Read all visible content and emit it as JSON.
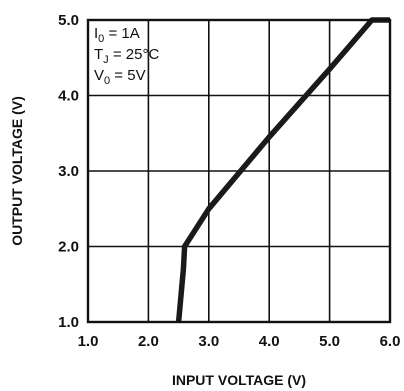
{
  "chart_data": {
    "type": "line",
    "title": "",
    "xlabel": "INPUT VOLTAGE (V)",
    "ylabel": "OUTPUT VOLTAGE (V)",
    "xlim": [
      1.0,
      6.0
    ],
    "ylim": [
      1.0,
      5.0
    ],
    "x_ticks": [
      1.0,
      2.0,
      3.0,
      4.0,
      5.0,
      6.0
    ],
    "y_ticks": [
      1.0,
      2.0,
      3.0,
      4.0,
      5.0
    ],
    "x_tick_labels": [
      "1.0",
      "2.0",
      "3.0",
      "4.0",
      "5.0",
      "6.0"
    ],
    "y_tick_labels": [
      "1.0",
      "2.0",
      "3.0",
      "4.0",
      "5.0"
    ],
    "grid": true,
    "annotations": [
      {
        "main": "I",
        "sub": "0",
        "rest": " = 1A"
      },
      {
        "main": "T",
        "sub": "J",
        "rest": " = 25°C"
      },
      {
        "main": "V",
        "sub": "0",
        "rest": " = 5V"
      }
    ],
    "series": [
      {
        "x": [
          2.5,
          2.58,
          2.6,
          3.0,
          4.0,
          5.0,
          5.7,
          6.0
        ],
        "y": [
          1.0,
          1.7,
          2.0,
          2.5,
          3.45,
          4.35,
          5.0,
          5.0
        ]
      }
    ],
    "colors": {
      "line": "#1a1a1a",
      "grid": "#111111",
      "axis": "#111111"
    }
  }
}
